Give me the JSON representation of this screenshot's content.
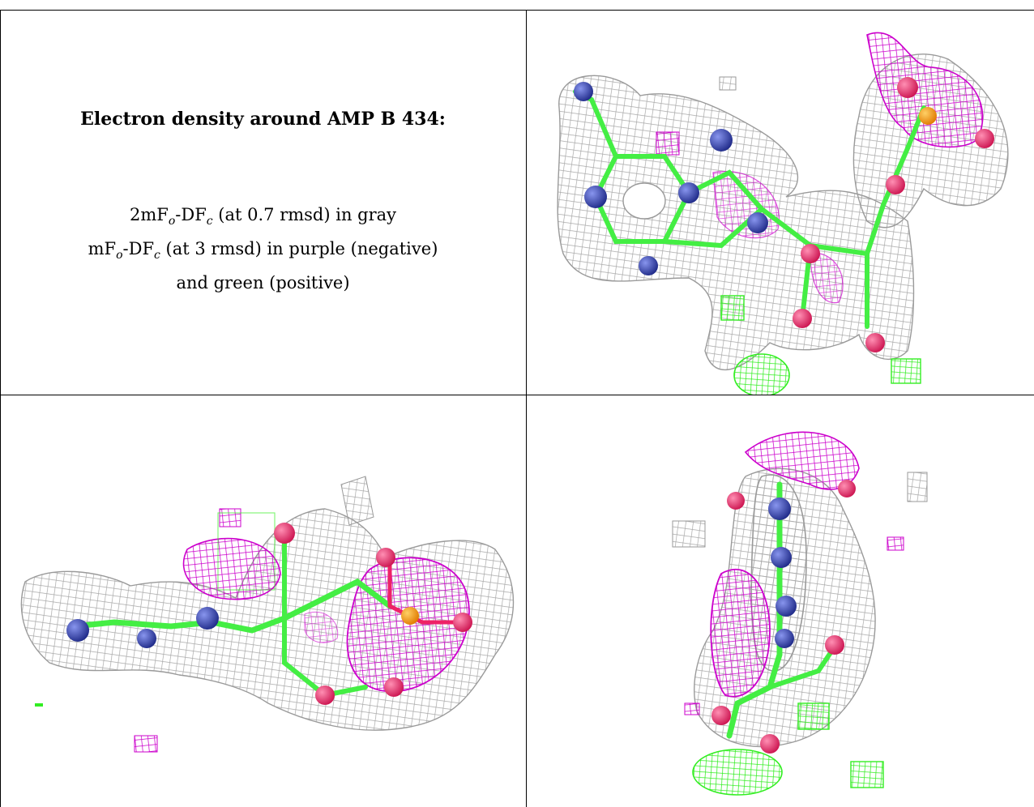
{
  "caption": {
    "title": "Electron density around AMP B 434:",
    "line1": "2mFₒ-DFᴄ (at 0.7 rmsd) in gray",
    "line2": "mFₒ-DFᴄ (at 3 rmsd) in purple (negative)",
    "line3": "and green (positive)"
  },
  "colors": {
    "map_2fofc": "#9a9a9a",
    "map_negative": "#cc00cc",
    "map_positive": "#33ee22",
    "carbon": "#44ee44",
    "nitrogen": "#3344bb",
    "oxygen": "#ee2266",
    "phosphorus": "#ff9900"
  }
}
